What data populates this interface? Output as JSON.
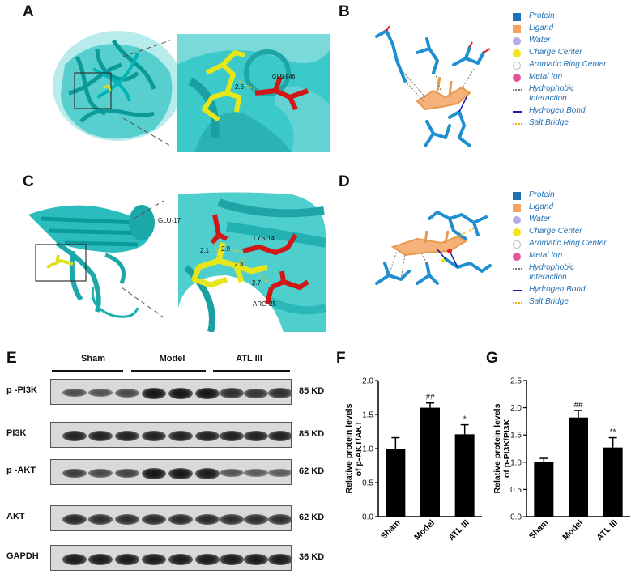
{
  "panels": {
    "A": "A",
    "B": "B",
    "C": "C",
    "D": "D",
    "E": "E",
    "F": "F",
    "G": "G"
  },
  "panel_A": {
    "residue": "GLN-846",
    "distance": "2.6"
  },
  "panel_C": {
    "residues": [
      "GLU-17",
      "LYS-14",
      "ARG-25"
    ],
    "distances": [
      "2.1",
      "2.9",
      "2.3",
      "2.7"
    ]
  },
  "legend": [
    {
      "label": "Protein",
      "color": "#1f6fb5",
      "kind": "square"
    },
    {
      "label": "Ligand",
      "color": "#f4a460",
      "kind": "square"
    },
    {
      "label": "Water",
      "color": "#b9a8e8",
      "kind": "circle"
    },
    {
      "label": "Charge Center",
      "color": "#f5e31a",
      "kind": "circle"
    },
    {
      "label": "Aromatic Ring Center",
      "color": "#ffffff",
      "kind": "ring"
    },
    {
      "label": "Metal Ion",
      "color": "#e8549a",
      "kind": "circle"
    },
    {
      "label": "Hydrophobic\nInteraction",
      "color": "#777777",
      "kind": "dotted"
    },
    {
      "label": "Hydrogen Bond",
      "color": "#1a1aa8",
      "kind": "solid"
    },
    {
      "label": "Salt Bridge",
      "color": "#f0b400",
      "kind": "dotted"
    }
  ],
  "western_blot": {
    "groups": [
      "Sham",
      "Model",
      "ATL III"
    ],
    "rows": [
      {
        "protein": "p -PI3K",
        "size": "85 KD",
        "intensity": [
          0.55,
          0.5,
          0.6,
          1.0,
          1.0,
          1.0,
          0.8,
          0.75,
          0.8
        ]
      },
      {
        "protein": "PI3K",
        "size": "85 KD",
        "intensity": [
          0.9,
          0.9,
          0.9,
          0.9,
          0.9,
          0.9,
          0.9,
          0.9,
          0.9
        ]
      },
      {
        "protein": "p -AKT",
        "size": "62 KD",
        "intensity": [
          0.7,
          0.6,
          0.65,
          1.0,
          1.0,
          0.95,
          0.5,
          0.45,
          0.45
        ]
      },
      {
        "protein": "AKT",
        "size": "62 KD",
        "intensity": [
          0.85,
          0.8,
          0.8,
          0.85,
          0.85,
          0.85,
          0.8,
          0.8,
          0.8
        ]
      },
      {
        "protein": "GAPDH",
        "size": "36 KD",
        "intensity": [
          0.95,
          0.95,
          0.95,
          0.95,
          0.95,
          0.95,
          0.95,
          0.95,
          0.95
        ]
      }
    ]
  },
  "chart_data": [
    {
      "type": "bar",
      "panel": "F",
      "categories": [
        "Sham",
        "Model",
        "ATL III"
      ],
      "values": [
        1.0,
        1.6,
        1.21
      ],
      "errors": [
        0.16,
        0.07,
        0.14
      ],
      "annotations": [
        "",
        "##",
        "*"
      ],
      "ylabel": "Relative protein levels\nof p-AKT/AKT",
      "ylim": [
        0,
        2.0
      ],
      "yticks": [
        "0.0",
        "0.5",
        "1.0",
        "1.5",
        "2.0"
      ],
      "bar_color": "#000000"
    },
    {
      "type": "bar",
      "panel": "G",
      "categories": [
        "Sham",
        "Model",
        "ATL III"
      ],
      "values": [
        1.0,
        1.82,
        1.27
      ],
      "errors": [
        0.07,
        0.13,
        0.18
      ],
      "annotations": [
        "",
        "##",
        "**"
      ],
      "ylabel": "Relative protein levels\nof p-PI3K/PI3K",
      "ylim": [
        0,
        2.5
      ],
      "yticks": [
        "0.0",
        "0.5",
        "1.0",
        "1.5",
        "2.0",
        "2.5"
      ],
      "bar_color": "#000000"
    }
  ]
}
